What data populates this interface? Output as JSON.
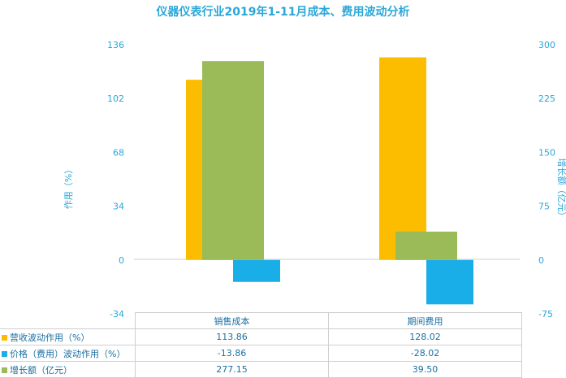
{
  "chart_data": {
    "type": "bar",
    "title": "仪器仪表行业2019年1-11月成本、费用波动分析",
    "categories": [
      "销售成本",
      "期间费用"
    ],
    "y_left_label": "作用（%）",
    "y_right_label": "增长额（亿元）",
    "y_left_ticks": [
      "136",
      "102",
      "68",
      "34",
      "0",
      "-34"
    ],
    "y_right_ticks": [
      "300",
      "225",
      "150",
      "75",
      "0",
      "-75"
    ],
    "y_left_lim": [
      -34,
      136
    ],
    "y_right_lim": [
      -75,
      300
    ],
    "grid": false,
    "legend": "data-table-below",
    "series": [
      {
        "name": "营收波动作用（%）",
        "axis": "left",
        "color": "#fcbd00",
        "values": [
          113.86,
          128.02
        ],
        "labels": [
          "113.86",
          "128.02"
        ]
      },
      {
        "name": "价格（费用）波动作用（%）",
        "axis": "left",
        "color": "#1aaee8",
        "values": [
          -13.86,
          -28.02
        ],
        "labels": [
          "-13.86",
          "-28.02"
        ]
      },
      {
        "name": "增长额（亿元）",
        "axis": "right",
        "color": "#9bbb59",
        "values": [
          277.15,
          39.5
        ],
        "labels": [
          "277.15",
          "39.50"
        ]
      }
    ]
  }
}
